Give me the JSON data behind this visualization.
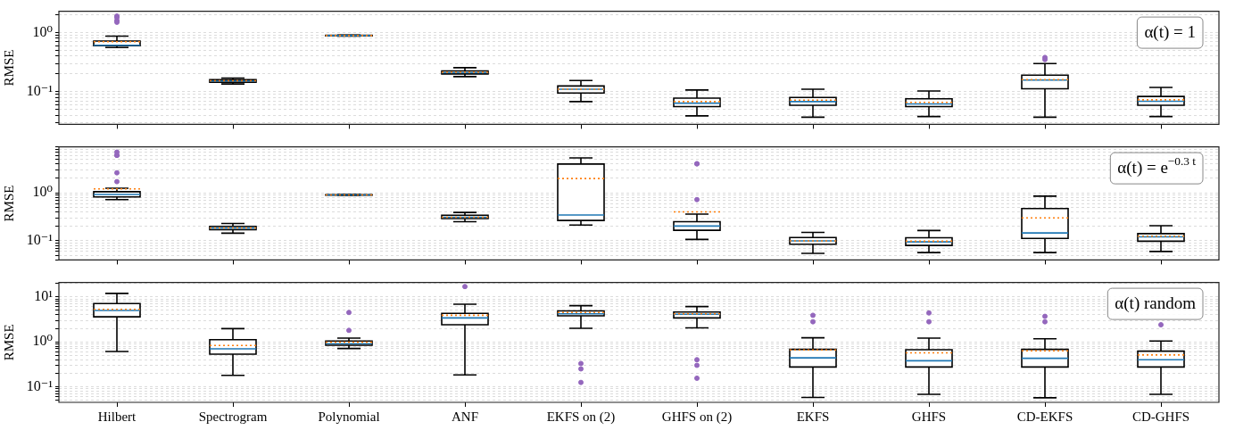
{
  "chart_data": [
    {
      "type": "box",
      "ylabel": "RMSE",
      "log": true,
      "grid": "y",
      "tick_labels": "y",
      "annotations": [
        "α(t) = 1"
      ],
      "categories": [
        null,
        null,
        null,
        null,
        null,
        null,
        null,
        null,
        null,
        null
      ],
      "ylim": [
        0.028,
        2.3
      ],
      "yticks": [
        {
          "value": 0.03,
          "label": null
        },
        {
          "value": 0.04,
          "label": null
        },
        {
          "value": 0.05,
          "label": null
        },
        {
          "value": 0.06,
          "label": null
        },
        {
          "value": 0.07,
          "label": null
        },
        {
          "value": 0.08,
          "label": null
        },
        {
          "value": 0.09,
          "label": null
        },
        {
          "value": 0.1,
          "label": "10⁻¹"
        },
        {
          "value": 0.2,
          "label": null
        },
        {
          "value": 0.3,
          "label": null
        },
        {
          "value": 0.4,
          "label": null
        },
        {
          "value": 0.5,
          "label": null
        },
        {
          "value": 0.6,
          "label": null
        },
        {
          "value": 0.7,
          "label": null
        },
        {
          "value": 0.8,
          "label": null
        },
        {
          "value": 0.9,
          "label": null
        },
        {
          "value": 1,
          "label": "10⁰"
        },
        {
          "value": 2,
          "label": null
        }
      ],
      "boxes": [
        {
          "low": 0.56,
          "q1": 0.6,
          "median": 0.61,
          "q3": 0.72,
          "high": 0.87,
          "mean": 0.7,
          "outliers": [
            1.9,
            1.8,
            1.6,
            1.5
          ]
        },
        {
          "low": 0.135,
          "q1": 0.145,
          "median": 0.152,
          "q3": 0.16,
          "high": 0.17,
          "mean": 0.153
        },
        {
          "low": 0.87,
          "q1": 0.88,
          "median": 0.89,
          "q3": 0.9,
          "high": 0.91,
          "mean": 0.89
        },
        {
          "low": 0.18,
          "q1": 0.2,
          "median": 0.21,
          "q3": 0.225,
          "high": 0.255,
          "mean": 0.213
        },
        {
          "low": 0.068,
          "q1": 0.095,
          "median": 0.11,
          "q3": 0.125,
          "high": 0.155,
          "mean": 0.11
        },
        {
          "low": 0.039,
          "q1": 0.056,
          "median": 0.064,
          "q3": 0.078,
          "high": 0.107,
          "mean": 0.068
        },
        {
          "low": 0.037,
          "q1": 0.059,
          "median": 0.068,
          "q3": 0.08,
          "high": 0.11,
          "mean": 0.072
        },
        {
          "low": 0.038,
          "q1": 0.056,
          "median": 0.062,
          "q3": 0.076,
          "high": 0.103,
          "mean": 0.066
        },
        {
          "low": 0.037,
          "q1": 0.112,
          "median": 0.157,
          "q3": 0.19,
          "high": 0.3,
          "mean": 0.16,
          "outliers": [
            0.38,
            0.35
          ]
        },
        {
          "low": 0.038,
          "q1": 0.059,
          "median": 0.069,
          "q3": 0.083,
          "high": 0.118,
          "mean": 0.073
        }
      ]
    },
    {
      "type": "box",
      "ylabel": "RMSE",
      "log": true,
      "grid": "y",
      "tick_labels": "y",
      "annotations": [
        "α(t) = e$^{−0.3 t}$"
      ],
      "categories": [
        null,
        null,
        null,
        null,
        null,
        null,
        null,
        null,
        null,
        null
      ],
      "ylim": [
        0.04,
        9
      ],
      "yticks": [
        {
          "value": 0.04,
          "label": null
        },
        {
          "value": 0.05,
          "label": null
        },
        {
          "value": 0.06,
          "label": null
        },
        {
          "value": 0.07,
          "label": null
        },
        {
          "value": 0.08,
          "label": null
        },
        {
          "value": 0.09,
          "label": null
        },
        {
          "value": 0.1,
          "label": "10⁻¹"
        },
        {
          "value": 0.2,
          "label": null
        },
        {
          "value": 0.3,
          "label": null
        },
        {
          "value": 0.4,
          "label": null
        },
        {
          "value": 0.5,
          "label": null
        },
        {
          "value": 0.6,
          "label": null
        },
        {
          "value": 0.7,
          "label": null
        },
        {
          "value": 0.8,
          "label": null
        },
        {
          "value": 0.9,
          "label": null
        },
        {
          "value": 1,
          "label": "10⁰"
        },
        {
          "value": 2,
          "label": null
        },
        {
          "value": 3,
          "label": null
        },
        {
          "value": 4,
          "label": null
        },
        {
          "value": 5,
          "label": null
        },
        {
          "value": 6,
          "label": null
        },
        {
          "value": 7,
          "label": null
        },
        {
          "value": 8,
          "label": null
        },
        {
          "value": 9,
          "label": null
        }
      ],
      "boxes": [
        {
          "low": 0.72,
          "q1": 0.82,
          "median": 0.92,
          "q3": 1.05,
          "high": 1.24,
          "mean": 1.2,
          "outliers": [
            7.0,
            6.0,
            6.0,
            2.6,
            1.7
          ]
        },
        {
          "low": 0.144,
          "q1": 0.17,
          "median": 0.184,
          "q3": 0.2,
          "high": 0.23,
          "mean": 0.185
        },
        {
          "low": 0.88,
          "q1": 0.89,
          "median": 0.9,
          "q3": 0.91,
          "high": 0.92,
          "mean": 0.9
        },
        {
          "low": 0.25,
          "q1": 0.29,
          "median": 0.31,
          "q3": 0.34,
          "high": 0.39,
          "mean": 0.31
        },
        {
          "low": 0.213,
          "q1": 0.265,
          "median": 0.345,
          "q3": 3.95,
          "high": 5.3,
          "mean": 1.97
        },
        {
          "low": 0.107,
          "q1": 0.166,
          "median": 0.203,
          "q3": 0.25,
          "high": 0.36,
          "mean": 0.4,
          "outliers": [
            4.0,
            4.0,
            0.72
          ]
        },
        {
          "low": 0.055,
          "q1": 0.085,
          "median": 0.1,
          "q3": 0.117,
          "high": 0.15,
          "mean": 0.1
        },
        {
          "low": 0.057,
          "q1": 0.08,
          "median": 0.095,
          "q3": 0.116,
          "high": 0.164,
          "mean": 0.098
        },
        {
          "low": 0.057,
          "q1": 0.112,
          "median": 0.146,
          "q3": 0.47,
          "high": 0.85,
          "mean": 0.3
        },
        {
          "low": 0.06,
          "q1": 0.098,
          "median": 0.121,
          "q3": 0.141,
          "high": 0.206,
          "mean": 0.125
        }
      ]
    },
    {
      "type": "box",
      "ylabel": "RMSE",
      "log": true,
      "grid": "y",
      "annotations": [
        "α(t) random"
      ],
      "categories": [
        "Hilbert",
        "Spectrogram",
        "Polynomial",
        "ANF",
        "EKFS on (2)",
        "GHFS on (2)",
        "EKFS",
        "GHFS",
        "CD-EKFS",
        "CD-GHFS"
      ],
      "ylim": [
        0.045,
        21
      ],
      "yticks": [
        {
          "value": 0.05,
          "label": null
        },
        {
          "value": 0.06,
          "label": null
        },
        {
          "value": 0.07,
          "label": null
        },
        {
          "value": 0.08,
          "label": null
        },
        {
          "value": 0.09,
          "label": null
        },
        {
          "value": 0.1,
          "label": "10⁻¹"
        },
        {
          "value": 0.2,
          "label": null
        },
        {
          "value": 0.3,
          "label": null
        },
        {
          "value": 0.4,
          "label": null
        },
        {
          "value": 0.5,
          "label": null
        },
        {
          "value": 0.6,
          "label": null
        },
        {
          "value": 0.7,
          "label": null
        },
        {
          "value": 0.8,
          "label": null
        },
        {
          "value": 0.9,
          "label": null
        },
        {
          "value": 1,
          "label": "10⁰"
        },
        {
          "value": 2,
          "label": null
        },
        {
          "value": 3,
          "label": null
        },
        {
          "value": 4,
          "label": null
        },
        {
          "value": 5,
          "label": null
        },
        {
          "value": 6,
          "label": null
        },
        {
          "value": 7,
          "label": null
        },
        {
          "value": 8,
          "label": null
        },
        {
          "value": 9,
          "label": null
        },
        {
          "value": 10,
          "label": "10¹"
        },
        {
          "value": 20,
          "label": null
        }
      ],
      "boxes": [
        {
          "low": 0.61,
          "q1": 3.6,
          "median": 5.0,
          "q3": 7.1,
          "high": 12,
          "mean": 5.3
        },
        {
          "low": 0.18,
          "q1": 0.53,
          "median": 0.7,
          "q3": 1.12,
          "high": 1.97,
          "mean": 0.83
        },
        {
          "low": 0.71,
          "q1": 0.84,
          "median": 0.91,
          "q3": 1.04,
          "high": 1.21,
          "mean": 0.98,
          "outliers": [
            4.5,
            1.8
          ]
        },
        {
          "low": 0.184,
          "q1": 2.4,
          "median": 3.4,
          "q3": 4.3,
          "high": 6.9,
          "mean": 3.9,
          "outliers": [
            17
          ]
        },
        {
          "low": 2.0,
          "q1": 3.8,
          "median": 4.2,
          "q3": 4.9,
          "high": 6.4,
          "mean": 4.5,
          "outliers": [
            0.33,
            0.25,
            0.125
          ]
        },
        {
          "low": 2.05,
          "q1": 3.4,
          "median": 4.1,
          "q3": 4.6,
          "high": 6.1,
          "mean": 4.2,
          "outliers": [
            0.4,
            0.3,
            0.155
          ]
        },
        {
          "low": 0.058,
          "q1": 0.275,
          "median": 0.44,
          "q3": 0.68,
          "high": 1.23,
          "mean": 0.66,
          "outliers": [
            3.9,
            2.8
          ]
        },
        {
          "low": 0.068,
          "q1": 0.275,
          "median": 0.38,
          "q3": 0.67,
          "high": 1.21,
          "mean": 0.57,
          "outliers": [
            4.4,
            2.8
          ]
        },
        {
          "low": 0.057,
          "q1": 0.275,
          "median": 0.43,
          "q3": 0.68,
          "high": 1.17,
          "mean": 0.63,
          "outliers": [
            3.7,
            2.8
          ]
        },
        {
          "low": 0.068,
          "q1": 0.275,
          "median": 0.4,
          "q3": 0.62,
          "high": 1.04,
          "mean": 0.51,
          "outliers": [
            2.4
          ]
        }
      ]
    }
  ]
}
